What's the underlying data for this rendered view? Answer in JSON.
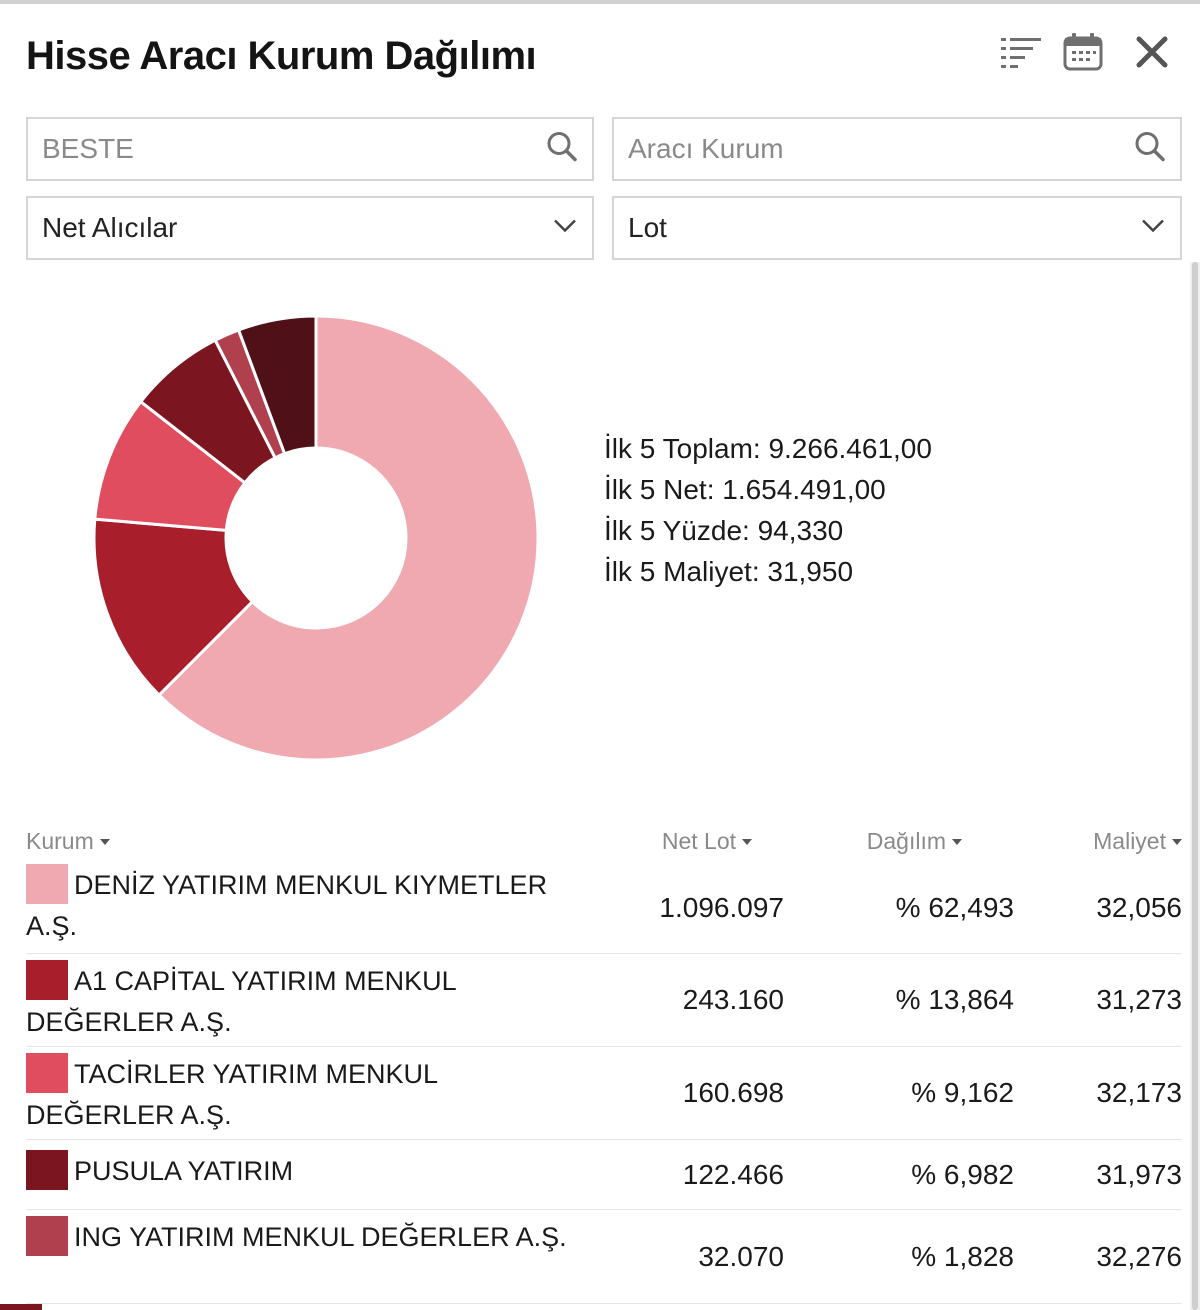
{
  "header": {
    "title": "Hisse Aracı Kurum Dağılımı",
    "icons": [
      "sort-list-icon",
      "calendar-icon",
      "close-icon"
    ]
  },
  "filters": {
    "stock_search": {
      "value": "BESTE",
      "placeholder": ""
    },
    "broker_search": {
      "value": "",
      "placeholder": "Aracı Kurum"
    },
    "side_select": {
      "selected": "Net Alıcılar"
    },
    "unit_select": {
      "selected": "Lot"
    }
  },
  "summary": {
    "total": "İlk 5 Toplam: 9.266.461,00",
    "net": "İlk 5 Net: 1.654.491,00",
    "percent": "İlk 5 Yüzde: 94,330",
    "cost": "İlk 5 Maliyet: 31,950"
  },
  "chart_data": {
    "type": "pie",
    "donut": true,
    "slices": [
      {
        "label": "DENİZ YATIRIM MENKUL KIYMETLER A.Ş.",
        "value": 62.493,
        "color": "#f0a8b1"
      },
      {
        "label": "A1 CAPİTAL YATIRIM MENKUL DEĞERLER A.Ş.",
        "value": 13.864,
        "color": "#a81e2a"
      },
      {
        "label": "TACİRLER YATIRIM MENKUL DEĞERLER A.Ş.",
        "value": 9.162,
        "color": "#e04d5e"
      },
      {
        "label": "PUSULA YATIRIM",
        "value": 6.982,
        "color": "#7b1520"
      },
      {
        "label": "ING YATIRIM MENKUL DEĞERLER A.Ş.",
        "value": 1.828,
        "color": "#b0404e"
      },
      {
        "label": "",
        "value": 5.671,
        "color": "#4f1017"
      }
    ]
  },
  "table": {
    "headers": {
      "kurum": "Kurum",
      "net_lot": "Net Lot",
      "dagilim": "Dağılım",
      "maliyet": "Maliyet"
    },
    "rows": [
      {
        "name": "DENİZ YATIRIM MENKUL KIYMETLER A.Ş.",
        "net_lot": "1.096.097",
        "dagilim": "% 62,493",
        "maliyet": "32,056",
        "color": "#f0a8b1"
      },
      {
        "name": "A1 CAPİTAL YATIRIM MENKUL DEĞERLER A.Ş.",
        "net_lot": "243.160",
        "dagilim": "% 13,864",
        "maliyet": "31,273",
        "color": "#a81e2a"
      },
      {
        "name": "TACİRLER YATIRIM MENKUL DEĞERLER A.Ş.",
        "net_lot": "160.698",
        "dagilim": "% 9,162",
        "maliyet": "32,173",
        "color": "#e04d5e"
      },
      {
        "name": "PUSULA YATIRIM",
        "net_lot": "122.466",
        "dagilim": "% 6,982",
        "maliyet": "31,973",
        "color": "#7b1520"
      },
      {
        "name": "ING YATIRIM MENKUL DEĞERLER A.Ş.",
        "net_lot": "32.070",
        "dagilim": "% 1,828",
        "maliyet": "32,276",
        "color": "#b0404e"
      }
    ],
    "next_row_color": "#7b1520"
  }
}
